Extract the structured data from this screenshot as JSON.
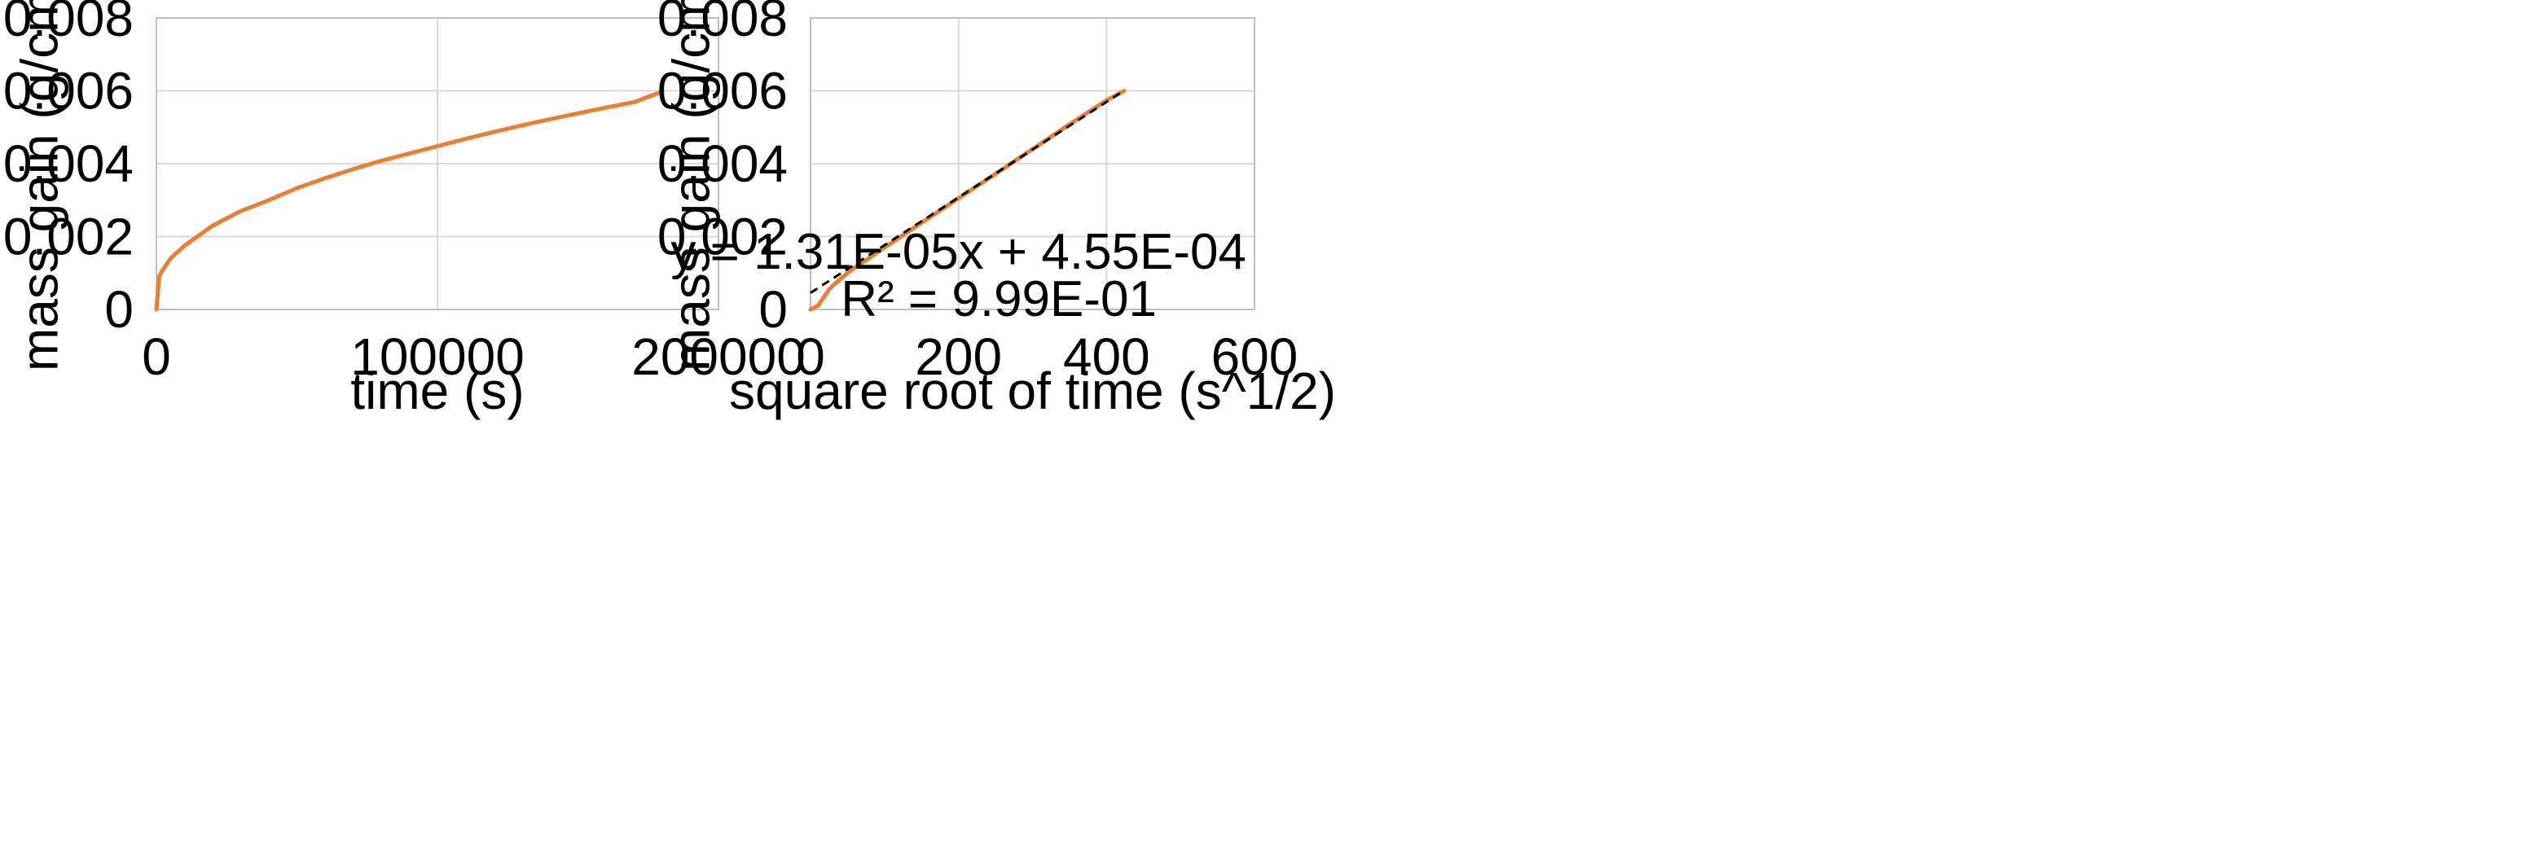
{
  "chart_data": [
    {
      "type": "line",
      "xlabel": "time (s)",
      "ylabel": "mass gain (g/cm²)",
      "xlim": [
        0,
        200000
      ],
      "ylim": [
        0,
        0.008
      ],
      "xticks": [
        0,
        100000,
        200000
      ],
      "xtick_labels": [
        "0",
        "100000",
        "200000"
      ],
      "yticks": [
        0,
        0.002,
        0.004,
        0.006,
        0.008
      ],
      "ytick_labels": [
        "0",
        "0.002",
        "0.004",
        "0.006",
        "0.008"
      ],
      "grid": true,
      "series": [
        {
          "color": "#ED7D31",
          "x": [
            0,
            1000,
            2000,
            5000,
            10000,
            20000,
            30000,
            40000,
            50000,
            60000,
            70000,
            80000,
            90000,
            100000,
            110000,
            120000,
            130000,
            140000,
            150000,
            160000,
            170000,
            180000
          ],
          "y": [
            0,
            0.0009,
            0.00105,
            0.0014,
            0.00175,
            0.0023,
            0.0027,
            0.003,
            0.00333,
            0.0036,
            0.00385,
            0.00408,
            0.00428,
            0.00448,
            0.00468,
            0.00487,
            0.00505,
            0.00522,
            0.00538,
            0.00554,
            0.00569,
            0.00598
          ]
        }
      ]
    },
    {
      "type": "line",
      "xlabel": "square root of time (s^1/2)",
      "ylabel": "mass gain (g/cm²)",
      "xlim": [
        0,
        600
      ],
      "ylim": [
        0,
        0.008
      ],
      "xticks": [
        0,
        200,
        400,
        600
      ],
      "xtick_labels": [
        "0",
        "200",
        "400",
        "600"
      ],
      "yticks": [
        0,
        0.002,
        0.004,
        0.006,
        0.008
      ],
      "ytick_labels": [
        "0",
        "0.002",
        "0.004",
        "0.006",
        "0.008"
      ],
      "grid": true,
      "series": [
        {
          "color": "#ED7D31",
          "x": [
            0,
            5,
            10,
            15,
            20,
            25,
            30,
            40,
            50,
            60,
            80,
            100,
            150,
            200,
            250,
            300,
            350,
            400,
            424
          ],
          "y": [
            0,
            5e-05,
            0.0001,
            0.00025,
            0.0004,
            0.00055,
            0.00065,
            0.00083,
            0.001,
            0.00115,
            0.00142,
            0.0017,
            0.00238,
            0.00305,
            0.00372,
            0.0044,
            0.00508,
            0.00574,
            0.006
          ]
        }
      ],
      "trendline": {
        "style": "dashed",
        "color": "#000000",
        "slope": 1.31e-05,
        "intercept": 0.000455,
        "x_range": [
          0,
          424
        ],
        "equation": "y = 1.31E-05x + 4.55E-04",
        "r_squared": "R² = 9.99E-01"
      }
    }
  ]
}
